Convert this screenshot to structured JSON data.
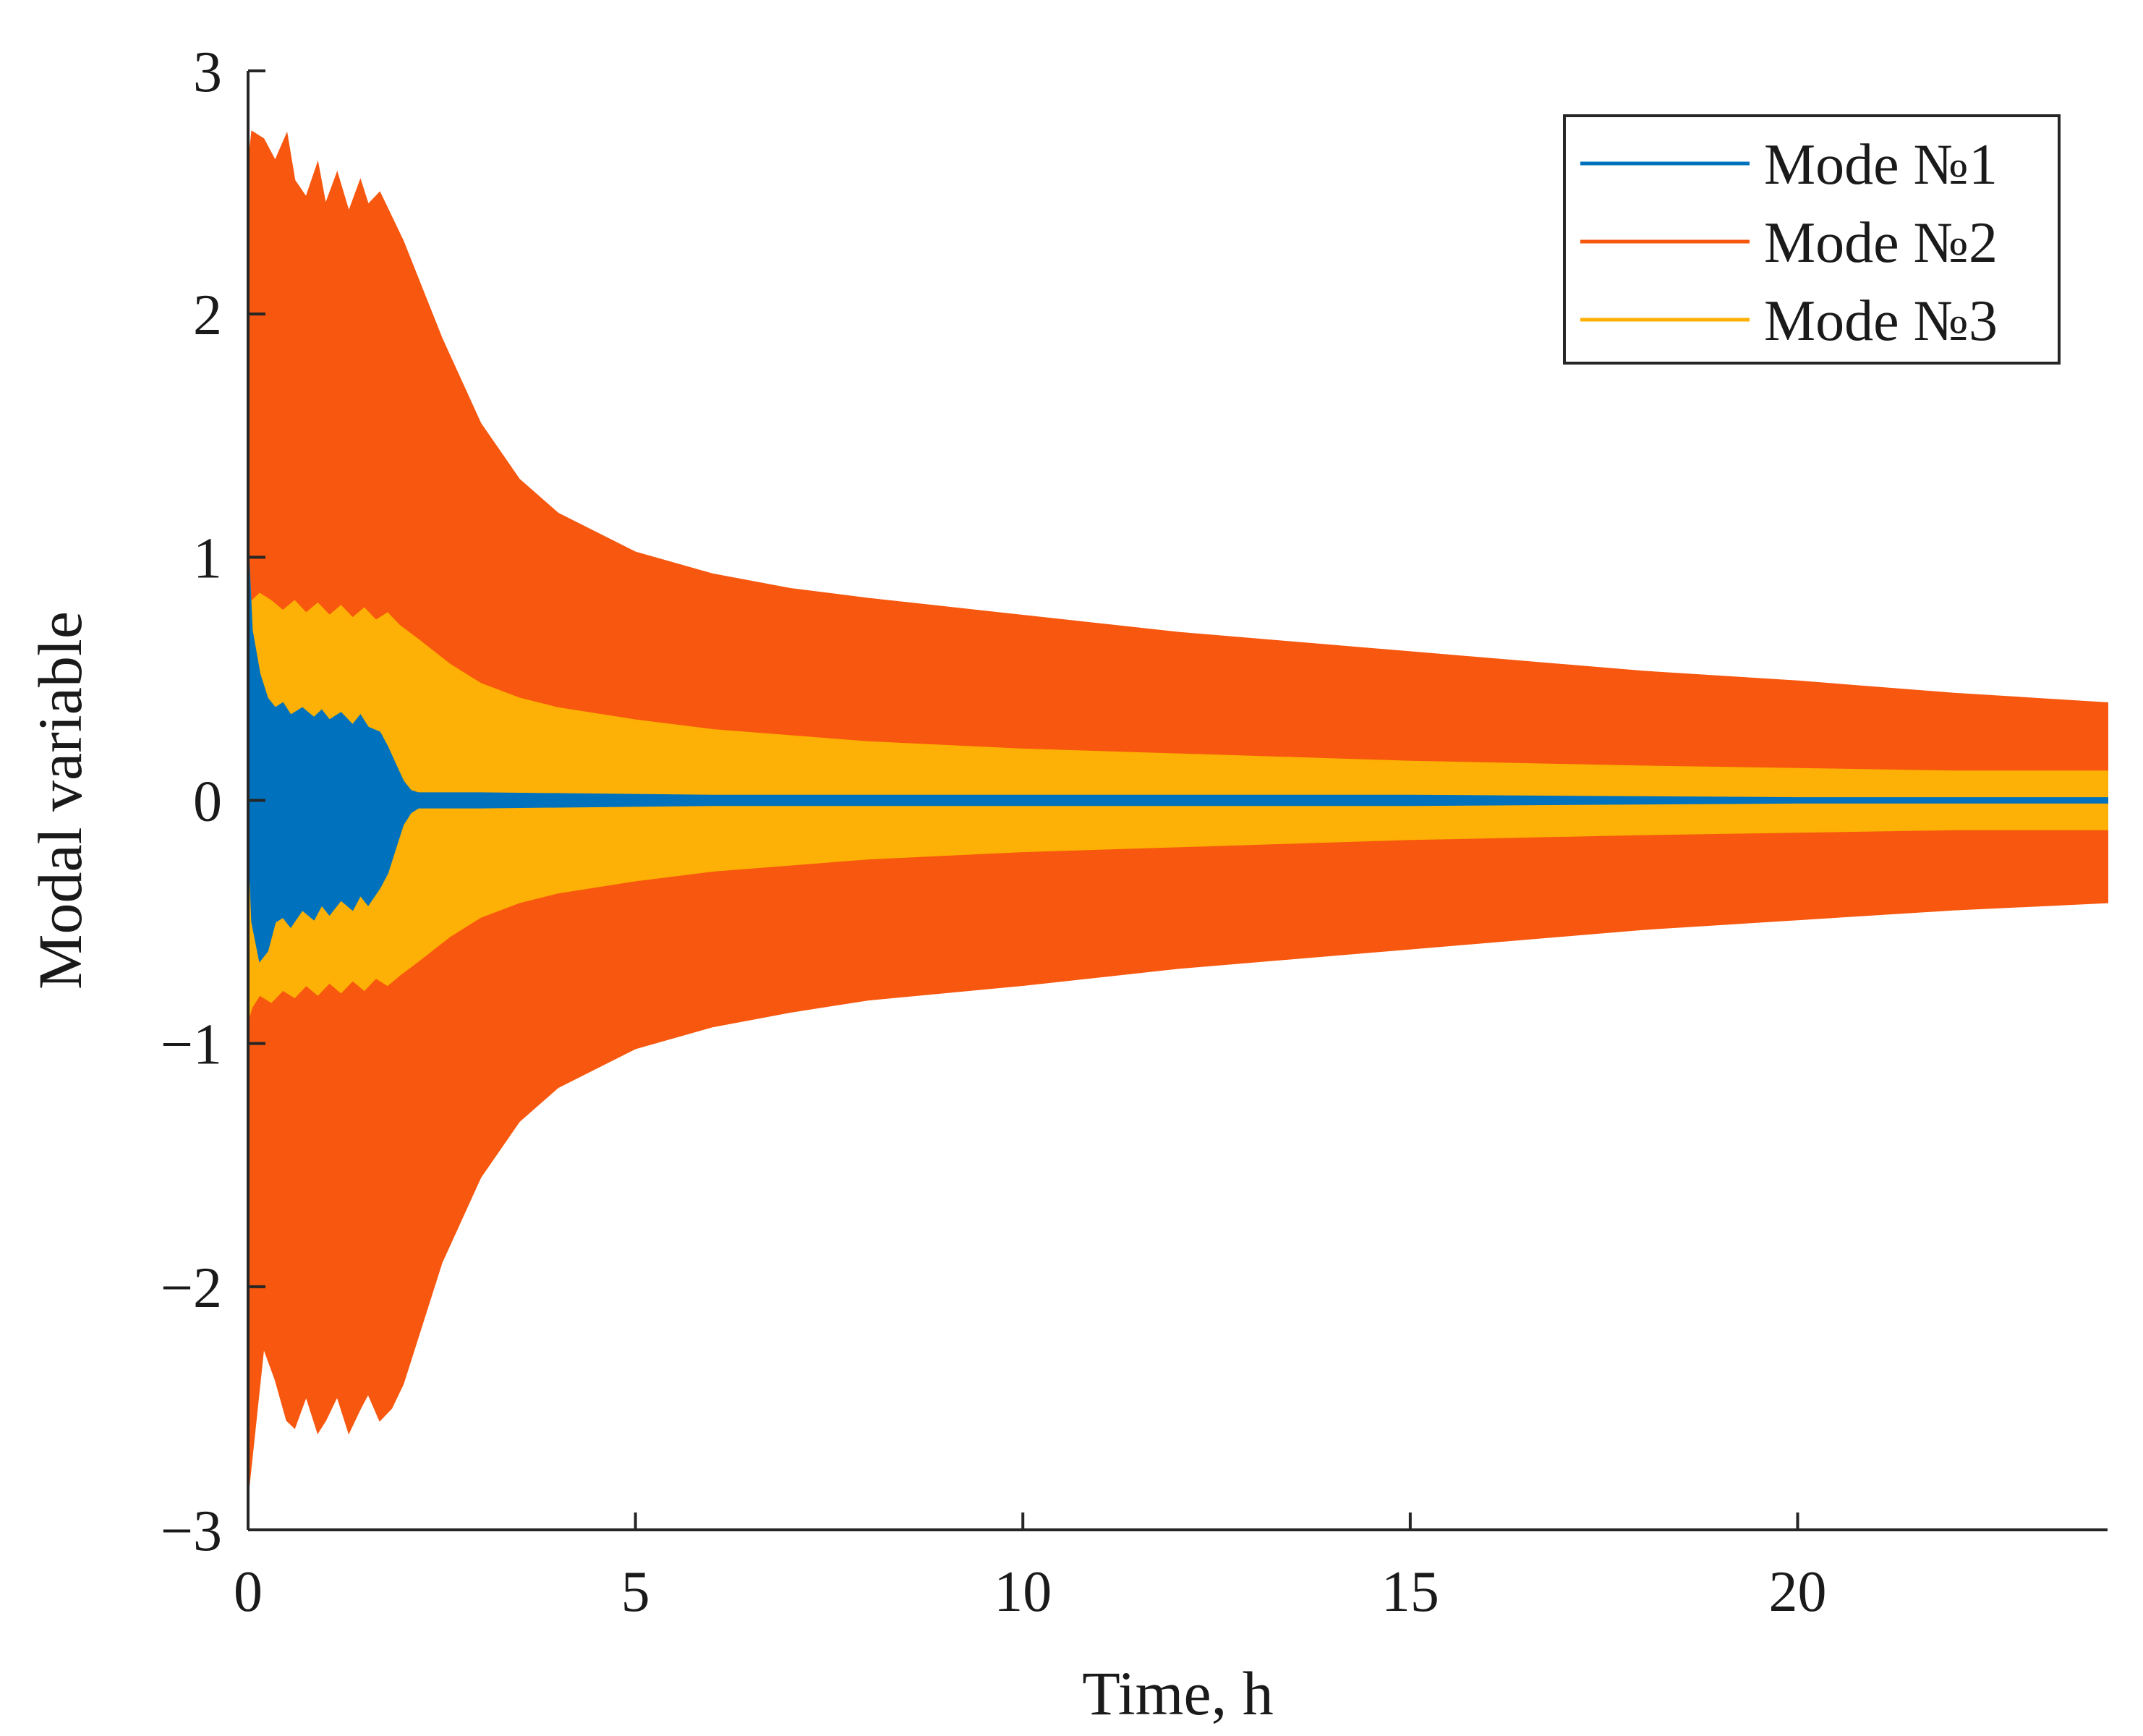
{
  "chart_data": {
    "type": "area",
    "title": "",
    "xlabel": "Time, h",
    "ylabel": "Modal variable",
    "xlim": [
      0,
      24
    ],
    "ylim": [
      -3,
      3
    ],
    "xticks": [
      0,
      5,
      10,
      15,
      20
    ],
    "yticks": [
      -3,
      -2,
      -1,
      0,
      1,
      2,
      3
    ],
    "x_tick_labels": [
      "0",
      "5",
      "10",
      "15",
      "20"
    ],
    "y_tick_labels": [
      "−3",
      "−2",
      "−1",
      "0",
      "1",
      "2",
      "3"
    ],
    "grid": false,
    "legend_position": "top-right",
    "description_note": "Oscillating signals rendered as filled envelopes (upper/lower amplitude vs time).",
    "series": [
      {
        "name": "Mode №1",
        "color": "#0072BD",
        "x": [
          0,
          0.05,
          0.15,
          0.25,
          0.35,
          0.45,
          0.55,
          0.7,
          0.85,
          0.95,
          1.05,
          1.2,
          1.35,
          1.45,
          1.55,
          1.7,
          1.8,
          1.9,
          2.0,
          2.1,
          2.2,
          2.3,
          2.4,
          3,
          6,
          10,
          15,
          20,
          24
        ],
        "upper": [
          1.05,
          0.7,
          0.52,
          0.42,
          0.38,
          0.4,
          0.35,
          0.38,
          0.34,
          0.37,
          0.33,
          0.36,
          0.31,
          0.35,
          0.3,
          0.28,
          0.22,
          0.15,
          0.08,
          0.04,
          0.03,
          0.03,
          0.03,
          0.03,
          0.02,
          0.02,
          0.02,
          0.01,
          0.01
        ],
        "lower": [
          -0.1,
          -0.5,
          -0.66,
          -0.62,
          -0.5,
          -0.48,
          -0.52,
          -0.45,
          -0.49,
          -0.43,
          -0.47,
          -0.41,
          -0.45,
          -0.39,
          -0.43,
          -0.36,
          -0.3,
          -0.2,
          -0.1,
          -0.05,
          -0.03,
          -0.03,
          -0.03,
          -0.03,
          -0.02,
          -0.02,
          -0.02,
          -0.01,
          -0.01
        ]
      },
      {
        "name": "Mode №2",
        "color": "#F7570E",
        "x": [
          0,
          0.05,
          0.2,
          0.35,
          0.5,
          0.6,
          0.75,
          0.9,
          1.0,
          1.15,
          1.3,
          1.45,
          1.55,
          1.7,
          1.85,
          2.0,
          2.5,
          3,
          3.5,
          4,
          5,
          6,
          7,
          8,
          10,
          12,
          15,
          18,
          20,
          22,
          24
        ],
        "upper": [
          2.6,
          2.75,
          2.72,
          2.63,
          2.74,
          2.55,
          2.48,
          2.62,
          2.45,
          2.58,
          2.42,
          2.55,
          2.45,
          2.5,
          2.4,
          2.3,
          1.9,
          1.55,
          1.32,
          1.18,
          1.02,
          0.93,
          0.87,
          0.83,
          0.76,
          0.69,
          0.61,
          0.53,
          0.49,
          0.44,
          0.4
        ],
        "lower": [
          -2.85,
          -2.7,
          -2.25,
          -2.38,
          -2.55,
          -2.58,
          -2.45,
          -2.6,
          -2.55,
          -2.45,
          -2.6,
          -2.5,
          -2.44,
          -2.55,
          -2.5,
          -2.4,
          -1.9,
          -1.55,
          -1.32,
          -1.18,
          -1.02,
          -0.93,
          -0.87,
          -0.82,
          -0.76,
          -0.69,
          -0.61,
          -0.53,
          -0.49,
          -0.45,
          -0.42
        ]
      },
      {
        "name": "Mode №3",
        "color": "#FDB005",
        "x": [
          0,
          0.05,
          0.15,
          0.3,
          0.45,
          0.6,
          0.75,
          0.9,
          1.05,
          1.2,
          1.35,
          1.5,
          1.65,
          1.8,
          1.95,
          2.2,
          2.6,
          3,
          3.5,
          4,
          5,
          6,
          8,
          10,
          12,
          15,
          18,
          20,
          22,
          24
        ],
        "upper": [
          0.55,
          0.82,
          0.85,
          0.82,
          0.78,
          0.82,
          0.77,
          0.81,
          0.76,
          0.8,
          0.75,
          0.79,
          0.74,
          0.77,
          0.72,
          0.66,
          0.56,
          0.48,
          0.42,
          0.38,
          0.33,
          0.29,
          0.24,
          0.21,
          0.19,
          0.16,
          0.14,
          0.13,
          0.12,
          0.12
        ],
        "lower": [
          -0.9,
          -0.85,
          -0.8,
          -0.83,
          -0.78,
          -0.81,
          -0.76,
          -0.8,
          -0.75,
          -0.79,
          -0.74,
          -0.78,
          -0.73,
          -0.76,
          -0.72,
          -0.66,
          -0.56,
          -0.48,
          -0.42,
          -0.38,
          -0.33,
          -0.29,
          -0.24,
          -0.21,
          -0.19,
          -0.16,
          -0.14,
          -0.13,
          -0.12,
          -0.12
        ]
      }
    ]
  }
}
